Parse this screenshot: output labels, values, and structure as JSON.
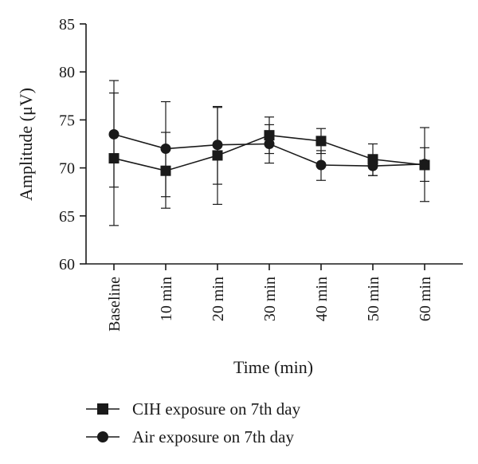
{
  "chart_data": {
    "type": "line",
    "categories": [
      "Baseline",
      "10 min",
      "20 min",
      "30 min",
      "40 min",
      "50 min",
      "60 min"
    ],
    "xlabel": "Time (min)",
    "ylabel": "Amplitude (μV)",
    "ylim": [
      60,
      85
    ],
    "yticks": [
      "60",
      "65",
      "70",
      "75",
      "80",
      "85"
    ],
    "grid": false,
    "legend_position": "bottom-left",
    "series": [
      {
        "name": "CIH exposure on 7th day",
        "marker": "square",
        "values": [
          71.0,
          69.7,
          71.3,
          73.4,
          72.8,
          70.9,
          70.3
        ],
        "error_low": [
          64.0,
          65.8,
          66.2,
          70.5,
          71.5,
          69.2,
          66.5
        ],
        "error_high": [
          77.8,
          73.7,
          76.4,
          75.3,
          74.1,
          72.5,
          74.2
        ],
        "color": "#1a1a1a"
      },
      {
        "name": "Air exposure on 7th day",
        "marker": "circle",
        "values": [
          73.5,
          72.0,
          72.4,
          72.5,
          70.3,
          70.2,
          70.4
        ],
        "error_low": [
          68.0,
          67.0,
          68.3,
          71.5,
          68.7,
          69.2,
          68.6
        ],
        "error_high": [
          79.1,
          76.9,
          76.3,
          74.5,
          71.8,
          71.3,
          72.1
        ],
        "color": "#1a1a1a"
      }
    ]
  }
}
